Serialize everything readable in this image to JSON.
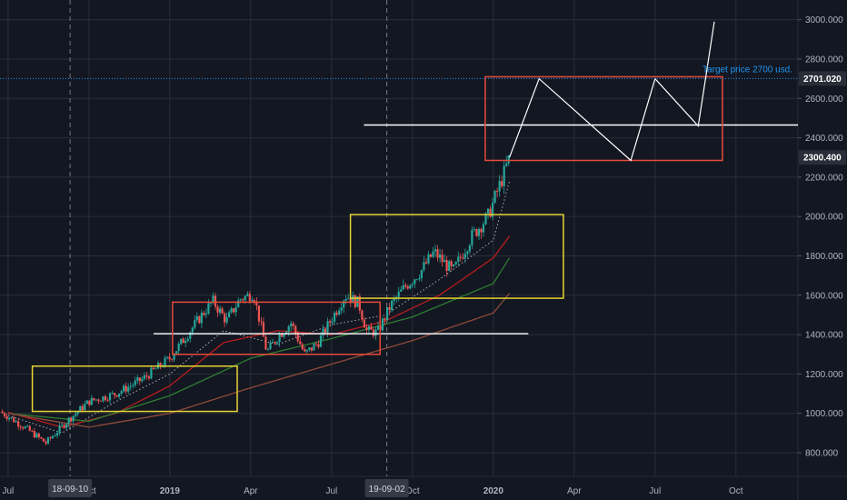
{
  "colors": {
    "background": "#131722",
    "grid": "#2a2e39",
    "axis_text": "#b2b5be",
    "up": "#26a69a",
    "down": "#ef5350",
    "yellow_box": "#e8d333",
    "red_box": "#e64a3b",
    "projection": "#ffffff",
    "target_line": "#2196f3",
    "label_bg": "#2a2e39",
    "ma_red": "#b71c1c",
    "ma_green": "#2e7d32",
    "ma_brown": "#8d4b3a",
    "ma_dotted": "#d1d4dc"
  },
  "chart_data": {
    "type": "candlestick",
    "y_ticks": [
      "800.000",
      "1000.000",
      "1200.000",
      "1400.000",
      "1600.000",
      "1800.000",
      "2000.000",
      "2200.000",
      "2400.000",
      "2600.000",
      "2800.000",
      "3000.000"
    ],
    "y_tick_values": [
      800,
      1000,
      1200,
      1400,
      1600,
      1800,
      2000,
      2200,
      2400,
      2600,
      2800,
      3000
    ],
    "ylim": [
      680,
      3100
    ],
    "x_labels": [
      "Jul",
      "Oct",
      "2019",
      "Apr",
      "Jul",
      "Oct",
      "2020",
      "Apr",
      "Jul",
      "Oct"
    ],
    "x_label_months": [
      0,
      3,
      6,
      9,
      12,
      15,
      18,
      21,
      24,
      27
    ],
    "x_month_origin": "2018-07",
    "xlim_months": [
      -0.3,
      29.3
    ],
    "date_badges": [
      {
        "label": "18-09-10",
        "month": 2.3
      },
      {
        "label": "19-09-02",
        "month": 14.05
      }
    ],
    "price_badges": [
      {
        "label": "2701.020",
        "value": 2701
      },
      {
        "label": "2300.400",
        "value": 2300
      }
    ],
    "target_annotation": {
      "text": "Target price 2700 usd.",
      "value": 2701
    },
    "boxes": [
      {
        "color": "yellow",
        "month_start": 0.9,
        "month_end": 8.5,
        "low": 1010,
        "high": 1240
      },
      {
        "color": "red",
        "month_start": 6.1,
        "month_end": 13.8,
        "low": 1300,
        "high": 1565
      },
      {
        "color": "yellow",
        "month_start": 12.7,
        "month_end": 20.6,
        "low": 1585,
        "high": 2010
      },
      {
        "color": "red",
        "month_start": 17.7,
        "month_end": 26.5,
        "low": 2285,
        "high": 2710
      }
    ],
    "horizontal_levels": [
      {
        "value": 1405,
        "month_start": 5.4,
        "month_end": 19.3
      },
      {
        "value": 2465,
        "month_start": 13.2,
        "month_end": 29.3
      }
    ],
    "projection_path": {
      "months": [
        18.6,
        19.7,
        23.1,
        24.0,
        25.6,
        26.2
      ],
      "values": [
        2300,
        2700,
        2285,
        2700,
        2460,
        2990
      ]
    },
    "price_path": {
      "months": [
        -0.3,
        0.5,
        1.4,
        2.3,
        3.0,
        4.0,
        5.0,
        6.0,
        6.7,
        7.3,
        7.6,
        8.1,
        8.6,
        9.1,
        9.6,
        10.0,
        10.5,
        11.0,
        11.5,
        12.0,
        12.5,
        13.0,
        13.3,
        13.7,
        14.2,
        14.7,
        15.3,
        15.8,
        16.5,
        17.2,
        17.8,
        18.4,
        18.6
      ],
      "values": [
        1010,
        940,
        850,
        975,
        1060,
        1100,
        1175,
        1280,
        1410,
        1520,
        1570,
        1470,
        1580,
        1610,
        1310,
        1390,
        1460,
        1300,
        1360,
        1480,
        1600,
        1560,
        1420,
        1410,
        1550,
        1640,
        1720,
        1820,
        1720,
        1900,
        2000,
        2220,
        2300
      ]
    },
    "moving_averages": [
      {
        "color": "dotted",
        "months": [
          0,
          2,
          4,
          6,
          8,
          10,
          12,
          14,
          16,
          18,
          18.6
        ],
        "values": [
          990,
          900,
          1060,
          1200,
          1420,
          1350,
          1450,
          1500,
          1680,
          1880,
          2180
        ]
      },
      {
        "color": "red",
        "months": [
          0,
          2,
          4,
          6,
          8,
          10,
          12,
          14,
          16,
          18,
          18.6
        ],
        "values": [
          1005,
          930,
          1000,
          1140,
          1360,
          1420,
          1400,
          1470,
          1600,
          1790,
          1900
        ]
      },
      {
        "color": "green",
        "months": [
          0,
          3,
          6,
          9,
          12,
          15,
          18,
          18.6
        ],
        "values": [
          1000,
          960,
          1090,
          1280,
          1380,
          1490,
          1660,
          1790
        ]
      },
      {
        "color": "brown",
        "months": [
          0,
          3,
          6,
          9,
          12,
          15,
          18,
          18.6
        ],
        "values": [
          1000,
          930,
          1000,
          1130,
          1250,
          1370,
          1510,
          1610
        ]
      }
    ],
    "crosshair_months": [
      2.3,
      14.05
    ]
  }
}
